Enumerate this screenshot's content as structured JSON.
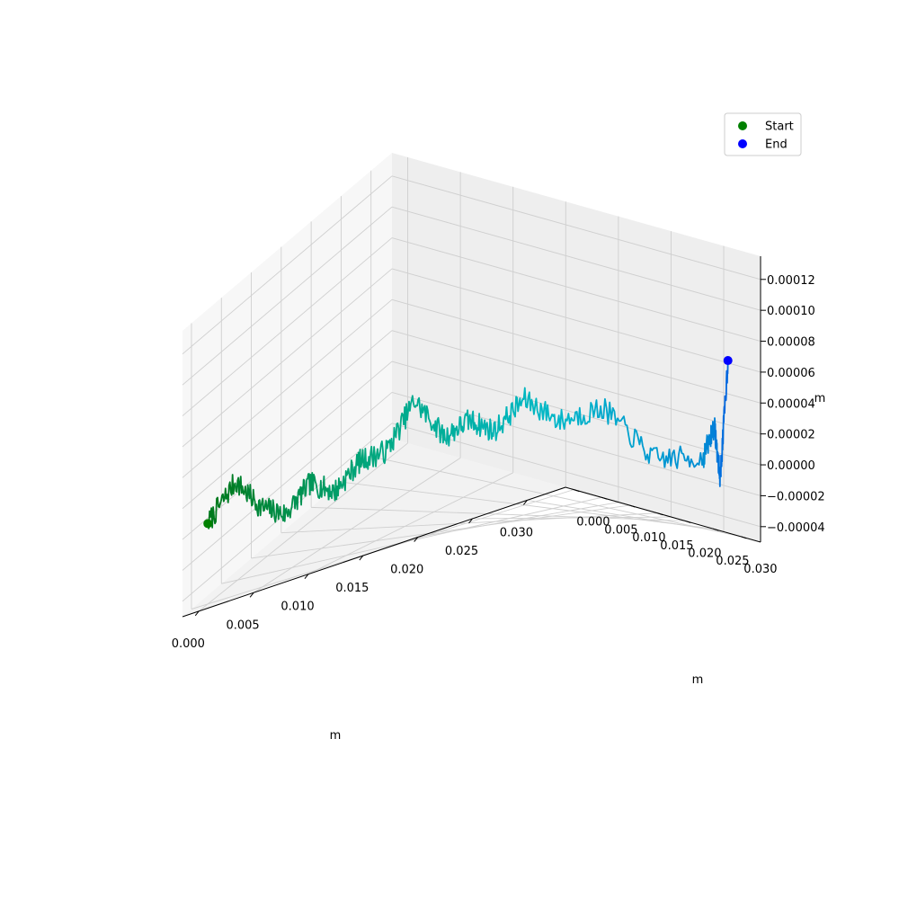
{
  "chart_data": {
    "type": "line",
    "projection": "3d",
    "title": "",
    "xlabel": "m",
    "ylabel": "m",
    "zlabel": "m",
    "x_ticks": [
      "0.000",
      "0.005",
      "0.010",
      "0.015",
      "0.020",
      "0.025",
      "0.030"
    ],
    "y_ticks": [
      "0.000",
      "0.005",
      "0.010",
      "0.015",
      "0.020",
      "0.025",
      "0.030"
    ],
    "z_ticks": [
      "−0.00004",
      "−0.00002",
      "0.00000",
      "0.00002",
      "0.00004",
      "0.00006",
      "0.00008",
      "0.00010",
      "0.00012"
    ],
    "xlim": [
      -0.0015,
      0.0335
    ],
    "ylim": [
      -0.0015,
      0.0335
    ],
    "zlim": [
      -5e-05,
      0.000135
    ],
    "grid": true,
    "colormap": [
      "#007a1e",
      "#00a880",
      "#00b8c8",
      "#0060e0"
    ],
    "path": {
      "x": [
        0.0,
        0.002,
        0.004,
        0.006,
        0.008,
        0.01,
        0.012,
        0.014,
        0.016,
        0.018,
        0.02,
        0.022,
        0.024,
        0.026,
        0.028,
        0.03,
        0.032,
        0.0315,
        0.031,
        0.0312
      ],
      "y": [
        0.0,
        0.001,
        0.0015,
        0.002,
        0.0025,
        0.003,
        0.0035,
        0.0045,
        0.0055,
        0.007,
        0.0075,
        0.008,
        0.0095,
        0.012,
        0.016,
        0.021,
        0.026,
        0.029,
        0.031,
        0.032
      ],
      "z": [
        2e-06,
        2.2e-05,
        0.0,
        -1e-05,
        5e-06,
        -5e-06,
        1e-05,
        1.2e-05,
        4e-05,
        1.2e-05,
        2e-05,
        1e-05,
        2.8e-05,
        1.2e-05,
        2e-05,
        -1e-05,
        -5e-06,
        1.8e-05,
        -1.5e-05,
        6.2e-05
      ]
    },
    "noise_amplitude": 3.5e-06,
    "noise_seed": 7,
    "start": {
      "x": 0.0,
      "y": 0.0,
      "z": 2e-06
    },
    "end": {
      "x": 0.0312,
      "y": 0.032,
      "z": 6.2e-05
    },
    "legend": {
      "placement": "upper-right",
      "entries": [
        {
          "label": "Start",
          "color": "#008000"
        },
        {
          "label": "End",
          "color": "#0000ff"
        }
      ]
    }
  }
}
